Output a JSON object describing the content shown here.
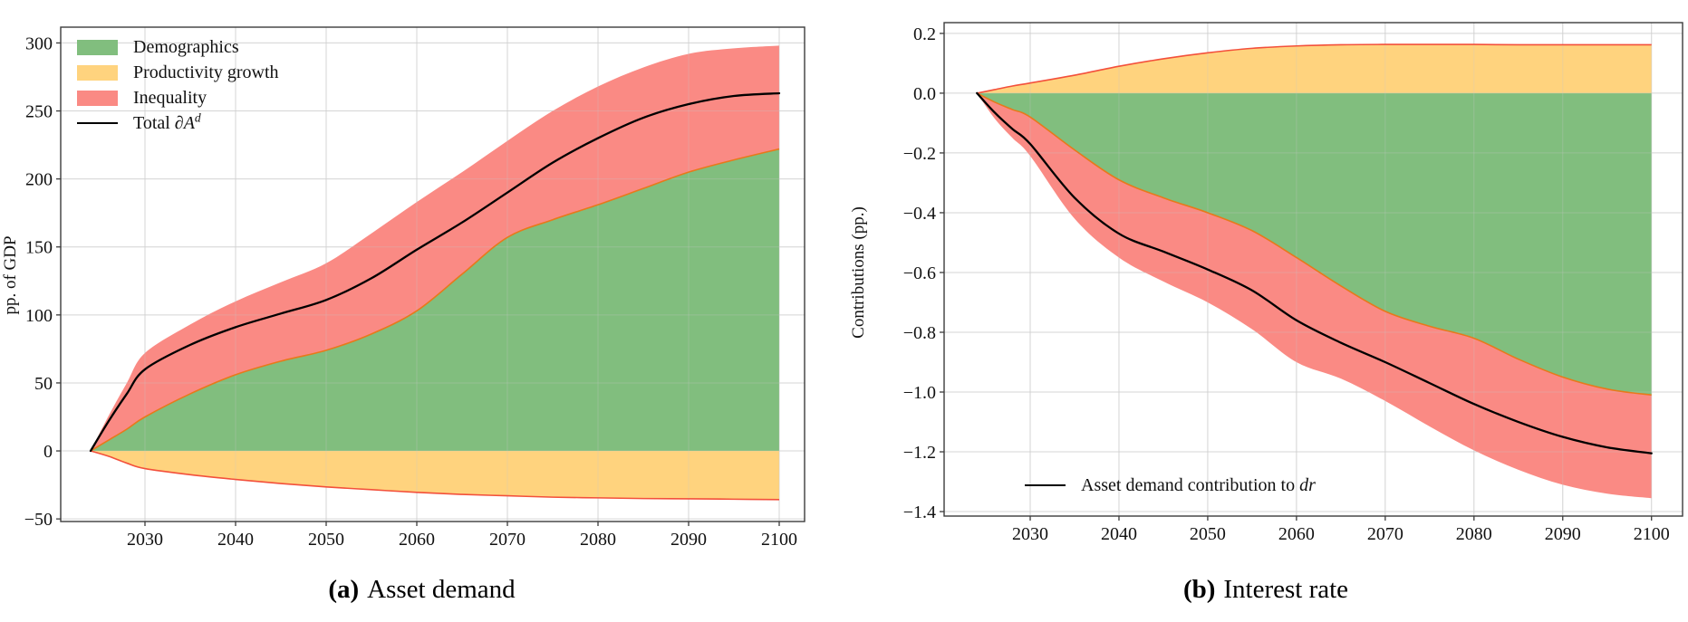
{
  "page": {
    "background": "#ffffff"
  },
  "colors": {
    "green": "#81be7e",
    "yellow": "#ffd37e",
    "red": "#fa8a84",
    "total_line": "#000000",
    "green_edge": "#e8791a",
    "yellow_edge": "#f3503b",
    "grid": "#dcdcdc",
    "axis": "#3c3c3c"
  },
  "chart_data": [
    {
      "type": "area",
      "title": "",
      "caption_tag": "(a)",
      "caption": "Asset demand",
      "xlabel": "",
      "ylabel": "pp. of GDP",
      "xlim": [
        2020.7,
        2102.8
      ],
      "ylim": [
        -51.9,
        311.6
      ],
      "grid": true,
      "legend_position": "top-left",
      "x": [
        2024,
        2026,
        2028,
        2030,
        2035,
        2040,
        2045,
        2050,
        2055,
        2060,
        2065,
        2070,
        2075,
        2080,
        2085,
        2090,
        2095,
        2100
      ],
      "series": {
        "demographics": [
          0,
          8,
          16,
          25,
          42,
          56,
          66,
          74,
          86,
          103,
          130,
          157,
          170,
          181,
          193,
          205,
          214,
          222
        ],
        "inequality_top": [
          0,
          26,
          50,
          72,
          93,
          110,
          124,
          138,
          160,
          183,
          205,
          228,
          250,
          268,
          282,
          292,
          296,
          298
        ],
        "productivity": [
          0,
          -4,
          -9,
          -13,
          -17.5,
          -21,
          -24,
          -26.5,
          -28.5,
          -30.5,
          -32,
          -33,
          -34,
          -34.5,
          -35,
          -35.2,
          -35.5,
          -35.8
        ],
        "total": [
          0,
          22,
          42,
          60,
          78,
          91,
          101,
          111,
          127,
          148,
          168,
          190,
          212,
          230,
          245,
          255,
          261,
          263
        ]
      },
      "areas": [
        {
          "name": "productivity-area",
          "upper": 0,
          "lower": "productivity",
          "fill": "yellow",
          "edge_series": "productivity",
          "edge_color": "yellow_edge"
        },
        {
          "name": "inequality-area",
          "upper": "inequality_top",
          "lower": "demographics",
          "fill": "red"
        },
        {
          "name": "demographics-area",
          "upper": "demographics",
          "lower": 0,
          "fill": "green",
          "edge_series": "demographics",
          "edge_color": "green_edge"
        }
      ],
      "xticks": {
        "values": [
          2030,
          2040,
          2050,
          2060,
          2070,
          2080,
          2090,
          2100
        ],
        "labels": [
          "2030",
          "2040",
          "2050",
          "2060",
          "2070",
          "2080",
          "2090",
          "2100"
        ]
      },
      "yticks": {
        "values": [
          -50,
          0,
          50,
          100,
          150,
          200,
          250,
          300
        ],
        "labels": [
          "−50",
          "0",
          "50",
          "100",
          "150",
          "200",
          "250",
          "300"
        ]
      },
      "legend": [
        {
          "label": "Demographics",
          "swatch": "green"
        },
        {
          "label": "Productivity growth",
          "swatch": "yellow"
        },
        {
          "label": "Inequality",
          "swatch": "red"
        },
        {
          "label": "Total ∂",
          "symbol": "A",
          "sup": "d",
          "swatch": "line"
        }
      ]
    },
    {
      "type": "area",
      "title": "",
      "caption_tag": "(b)",
      "caption": "Interest rate",
      "xlabel": "",
      "ylabel": "Contributions (pp.)",
      "xlim": [
        2020.3,
        2103.5
      ],
      "ylim": [
        -1.415,
        0.236
      ],
      "grid": true,
      "legend_position": "bottom-left",
      "x": [
        2024,
        2026,
        2028,
        2030,
        2035,
        2040,
        2045,
        2050,
        2055,
        2060,
        2065,
        2070,
        2075,
        2080,
        2085,
        2090,
        2095,
        2100
      ],
      "series": {
        "productivity": [
          0,
          0.012,
          0.024,
          0.034,
          0.06,
          0.09,
          0.115,
          0.135,
          0.15,
          0.158,
          0.162,
          0.163,
          0.163,
          0.163,
          0.162,
          0.162,
          0.162,
          0.162
        ],
        "demographics": [
          0,
          -0.03,
          -0.055,
          -0.08,
          -0.19,
          -0.29,
          -0.35,
          -0.4,
          -0.46,
          -0.55,
          -0.645,
          -0.73,
          -0.78,
          -0.82,
          -0.89,
          -0.95,
          -0.99,
          -1.01
        ],
        "inequality_bottom": [
          0,
          -0.085,
          -0.15,
          -0.21,
          -0.42,
          -0.55,
          -0.63,
          -0.7,
          -0.79,
          -0.9,
          -0.955,
          -1.03,
          -1.115,
          -1.195,
          -1.26,
          -1.31,
          -1.34,
          -1.355
        ],
        "total": [
          0,
          -0.065,
          -0.12,
          -0.17,
          -0.35,
          -0.47,
          -0.53,
          -0.59,
          -0.66,
          -0.76,
          -0.835,
          -0.9,
          -0.97,
          -1.04,
          -1.1,
          -1.15,
          -1.185,
          -1.205
        ]
      },
      "areas": [
        {
          "name": "productivity-area",
          "upper": "productivity",
          "lower": 0,
          "fill": "yellow",
          "edge_series": "productivity",
          "edge_color": "yellow_edge"
        },
        {
          "name": "inequality-area",
          "upper": "demographics",
          "lower": "inequality_bottom",
          "fill": "red"
        },
        {
          "name": "demographics-area",
          "upper": 0,
          "lower": "demographics",
          "fill": "green",
          "edge_series": "demographics",
          "edge_color": "green_edge"
        }
      ],
      "xticks": {
        "values": [
          2030,
          2040,
          2050,
          2060,
          2070,
          2080,
          2090,
          2100
        ],
        "labels": [
          "2030",
          "2040",
          "2050",
          "2060",
          "2070",
          "2080",
          "2090",
          "2100"
        ]
      },
      "yticks": {
        "values": [
          0.2,
          0.0,
          -0.2,
          -0.4,
          -0.6,
          -0.8,
          -1.0,
          -1.2,
          -1.4
        ],
        "labels": [
          "0.2",
          "0.0",
          "−0.2",
          "−0.4",
          "−0.6",
          "−0.8",
          "−1.0",
          "−1.2",
          "−1.4"
        ]
      },
      "legend": [
        {
          "label": "Asset demand contribution to ",
          "italic": "dr",
          "swatch": "line"
        }
      ]
    }
  ]
}
